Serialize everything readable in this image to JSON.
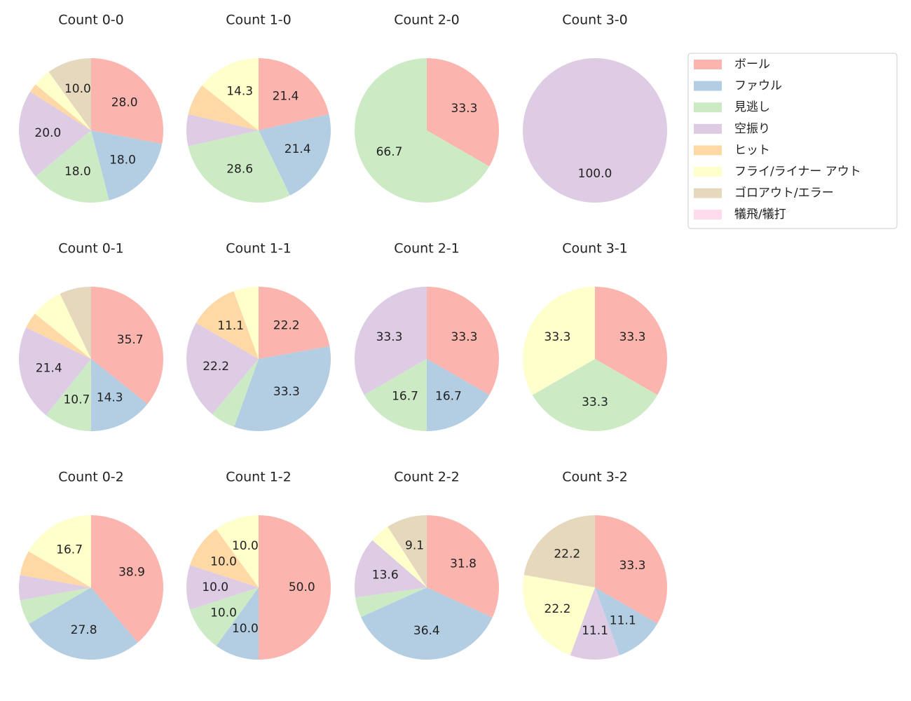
{
  "legend": {
    "labels": [
      "ボール",
      "ファウル",
      "見逃し",
      "空振り",
      "ヒット",
      "フライ/ライナー アウト",
      "ゴロアウト/エラー",
      "犠飛/犠打"
    ],
    "colors": [
      "#fbb4ae",
      "#b3cde3",
      "#ccebc5",
      "#decbe4",
      "#fed9a6",
      "#ffffcc",
      "#e5d8bd",
      "#fddaec"
    ]
  },
  "chart_data": [
    {
      "type": "pie",
      "title": "Count 0-0",
      "values": [
        28,
        18,
        18,
        20,
        2,
        4,
        10,
        0
      ],
      "value_labels": [
        "28.0",
        "18.0",
        "18.0",
        "20.0",
        null,
        null,
        "10.0",
        null
      ]
    },
    {
      "type": "pie",
      "title": "Count 1-0",
      "values": [
        21.4,
        21.4,
        28.6,
        7.1,
        7.1,
        14.3,
        0,
        0
      ],
      "value_labels": [
        "21.4",
        "21.4",
        "28.6",
        null,
        null,
        "14.3",
        null,
        null
      ]
    },
    {
      "type": "pie",
      "title": "Count 2-0",
      "values": [
        33.3,
        0,
        66.7,
        0,
        0,
        0,
        0,
        0
      ],
      "value_labels": [
        "33.3",
        null,
        "66.7",
        null,
        null,
        null,
        null,
        null
      ]
    },
    {
      "type": "pie",
      "title": "Count 3-0",
      "values": [
        0,
        0,
        0,
        100,
        0,
        0,
        0,
        0
      ],
      "value_labels": [
        null,
        null,
        null,
        "100.0",
        null,
        null,
        null,
        null
      ]
    },
    {
      "type": "pie",
      "title": "Count 0-1",
      "values": [
        35.7,
        14.3,
        10.7,
        21.4,
        3.6,
        7.1,
        7.1,
        0
      ],
      "value_labels": [
        "35.7",
        "14.3",
        "10.7",
        "21.4",
        null,
        null,
        null,
        null
      ]
    },
    {
      "type": "pie",
      "title": "Count 1-1",
      "values": [
        22.2,
        33.3,
        5.6,
        22.2,
        11.1,
        5.6,
        0,
        0
      ],
      "value_labels": [
        "22.2",
        "33.3",
        null,
        "22.2",
        "11.1",
        null,
        null,
        null
      ]
    },
    {
      "type": "pie",
      "title": "Count 2-1",
      "values": [
        33.3,
        16.7,
        16.7,
        33.3,
        0,
        0,
        0,
        0
      ],
      "value_labels": [
        "33.3",
        "16.7",
        "16.7",
        "33.3",
        null,
        null,
        null,
        null
      ]
    },
    {
      "type": "pie",
      "title": "Count 3-1",
      "values": [
        33.3,
        0,
        33.3,
        0,
        0,
        33.3,
        0,
        0
      ],
      "value_labels": [
        "33.3",
        null,
        "33.3",
        null,
        null,
        "33.3",
        null,
        null
      ]
    },
    {
      "type": "pie",
      "title": "Count 0-2",
      "values": [
        38.9,
        27.8,
        5.6,
        5.6,
        5.6,
        16.7,
        0,
        0
      ],
      "value_labels": [
        "38.9",
        "27.8",
        null,
        null,
        null,
        "16.7",
        null,
        null
      ]
    },
    {
      "type": "pie",
      "title": "Count 1-2",
      "values": [
        50,
        10,
        10,
        10,
        10,
        10,
        0,
        0
      ],
      "value_labels": [
        "50.0",
        "10.0",
        "10.0",
        "10.0",
        "10.0",
        "10.0",
        null,
        null
      ]
    },
    {
      "type": "pie",
      "title": "Count 2-2",
      "values": [
        31.8,
        36.4,
        4.5,
        13.6,
        0,
        4.5,
        9.1,
        0
      ],
      "value_labels": [
        "31.8",
        "36.4",
        null,
        "13.6",
        null,
        null,
        "9.1",
        null
      ]
    },
    {
      "type": "pie",
      "title": "Count 3-2",
      "values": [
        33.3,
        11.1,
        0,
        11.1,
        0,
        22.2,
        22.2,
        0
      ],
      "value_labels": [
        "33.3",
        "11.1",
        null,
        "11.1",
        null,
        "22.2",
        "22.2",
        null
      ]
    }
  ]
}
